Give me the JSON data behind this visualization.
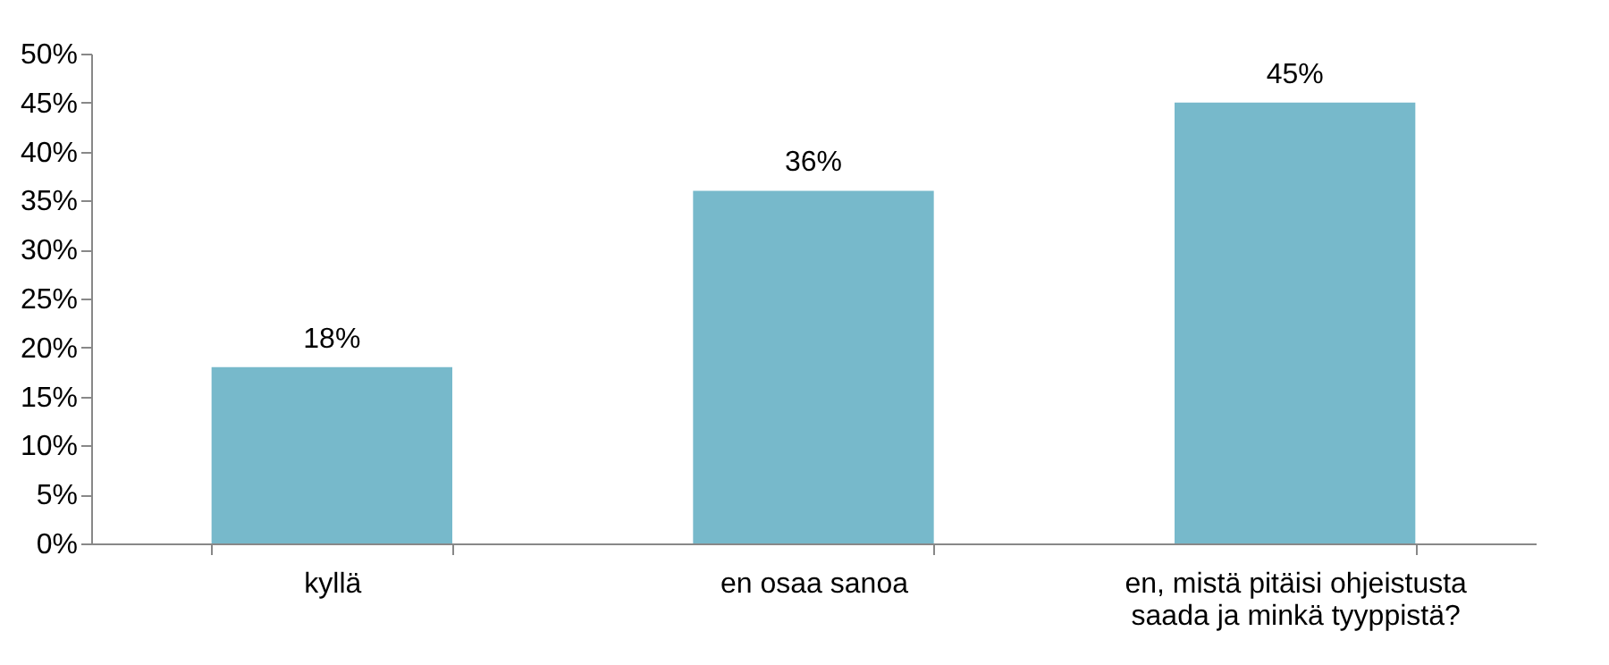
{
  "chart_data": {
    "type": "bar",
    "categories": [
      "kyllä",
      "en osaa sanoa",
      "en, mistä pitäisi ohjeistusta saada ja minkä tyyppistä?"
    ],
    "values": [
      18,
      36,
      45
    ],
    "value_labels": [
      "18%",
      "36%",
      "45%"
    ],
    "color": "#77b9cb",
    "ylim": [
      0,
      50
    ],
    "yticks": [
      {
        "value": 0,
        "label": "0%"
      },
      {
        "value": 5,
        "label": "5%"
      },
      {
        "value": 10,
        "label": "10%"
      },
      {
        "value": 15,
        "label": "15%"
      },
      {
        "value": 20,
        "label": "20%"
      },
      {
        "value": 25,
        "label": "25%"
      },
      {
        "value": 30,
        "label": "30%"
      },
      {
        "value": 35,
        "label": "35%"
      },
      {
        "value": 40,
        "label": "40%"
      },
      {
        "value": 45,
        "label": "45%"
      },
      {
        "value": 50,
        "label": "50%"
      }
    ],
    "grid": false
  }
}
